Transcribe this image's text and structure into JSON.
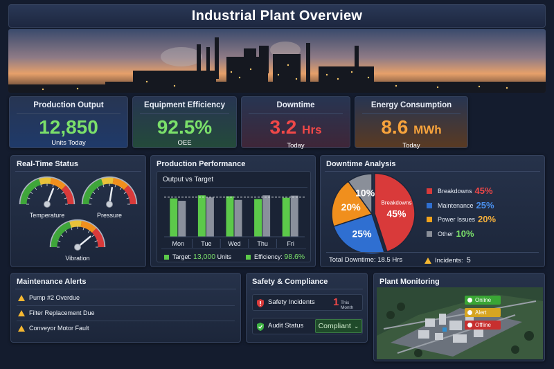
{
  "header": {
    "title": "Industrial Plant Overview"
  },
  "kpis": [
    {
      "title": "Production Output",
      "value": "12,850",
      "unit": "",
      "sub": "Units Today",
      "color": "#7be06a"
    },
    {
      "title": "Equipment Efficiency",
      "value": "92.5%",
      "unit": "",
      "sub": "OEE",
      "color": "#7be06a"
    },
    {
      "title": "Downtime",
      "value": "3.2",
      "unit": "Hrs",
      "sub": "Today",
      "color": "#f04848"
    },
    {
      "title": "Energy Consumption",
      "value": "8.6",
      "unit": "MWh",
      "sub": "Today",
      "color": "#f7a33c"
    }
  ],
  "realtime": {
    "title": "Real-Time Status",
    "gauges": [
      {
        "label": "Temperature",
        "level": 0.62
      },
      {
        "label": "Pressure",
        "level": 0.55
      },
      {
        "label": "Vibration",
        "level": 0.78
      }
    ]
  },
  "performance": {
    "title": "Production Performance",
    "subtitle": "Output vs Target",
    "target_label": "Target:",
    "target_value": "13,000",
    "target_unit": "Units",
    "efficiency_label": "Efficiency:",
    "efficiency_value": "98.6%"
  },
  "chart_data": {
    "type": "bar",
    "categories": [
      "Mon",
      "Tue",
      "Wed",
      "Thu",
      "Fri"
    ],
    "series": [
      {
        "name": "",
        "values": [
          12.6,
          13.6,
          13.3,
          12.4,
          12.8
        ],
        "color": "#5cc94a"
      },
      {
        "name": "",
        "values": [
          11.8,
          12.9,
          12.1,
          13.6,
          13.5
        ],
        "color": "#8a909c"
      }
    ],
    "target": 13.0,
    "ylim": [
      0,
      15
    ],
    "xlabel": "",
    "ylabel": ""
  },
  "downtime": {
    "title": "Downtime Analysis",
    "slices": [
      {
        "name": "Breakdowns",
        "value": 45,
        "label": "45%",
        "color": "#d93a3a"
      },
      {
        "name": "Maintenance",
        "value": 25,
        "label": "25%",
        "color": "#2f6fd1"
      },
      {
        "name": "Power Issues",
        "value": 20,
        "label": "20%",
        "color": "#f08f1d"
      },
      {
        "name": "Other",
        "value": 10,
        "label": "10%",
        "color": "#8a8f99"
      }
    ],
    "pie_breakdowns_name": "Breakdowns",
    "total_label": "Total Downtime: 18.5 Hrs",
    "incidents_label": "Incidents:",
    "incidents_value": "5"
  },
  "maintenance": {
    "title": "Maintenance Alerts",
    "items": [
      "Pump #2 Overdue",
      "Filter Replacement Due",
      "Conveyor Motor Fault"
    ]
  },
  "safety": {
    "title": "Safety & Compliance",
    "incidents_label": "Safety Incidents",
    "incidents_value": "1",
    "incidents_period": "This Month",
    "audit_label": "Audit Status",
    "audit_value": "Compliant"
  },
  "plant": {
    "title": "Plant Monitoring",
    "statuses": [
      {
        "label": "Online",
        "color": "#3aa635"
      },
      {
        "label": "Alert",
        "color": "#d6a521"
      },
      {
        "label": "Offline",
        "color": "#c72f2f"
      }
    ]
  }
}
